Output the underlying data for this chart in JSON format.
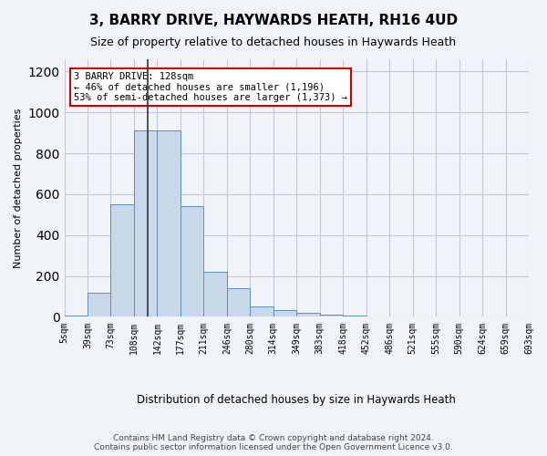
{
  "title_line1": "3, BARRY DRIVE, HAYWARDS HEATH, RH16 4UD",
  "title_line2": "Size of property relative to detached houses in Haywards Heath",
  "xlabel": "Distribution of detached houses by size in Haywards Heath",
  "ylabel": "Number of detached properties",
  "footer_line1": "Contains HM Land Registry data © Crown copyright and database right 2024.",
  "footer_line2": "Contains public sector information licensed under the Open Government Licence v3.0.",
  "bin_labels": [
    "5sqm",
    "39sqm",
    "73sqm",
    "108sqm",
    "142sqm",
    "177sqm",
    "211sqm",
    "246sqm",
    "280sqm",
    "314sqm",
    "349sqm",
    "383sqm",
    "418sqm",
    "452sqm",
    "486sqm",
    "521sqm",
    "555sqm",
    "590sqm",
    "624sqm",
    "659sqm",
    "693sqm"
  ],
  "bar_values": [
    8,
    120,
    550,
    910,
    910,
    540,
    220,
    140,
    52,
    32,
    20,
    10,
    8,
    0,
    0,
    0,
    0,
    0,
    0,
    0
  ],
  "bar_color": "#c8d8e8",
  "bar_edge_color": "#6090b8",
  "grid_color": "#c0c8d8",
  "annotation_text": "3 BARRY DRIVE: 128sqm\n← 46% of detached houses are smaller (1,196)\n53% of semi-detached houses are larger (1,373) →",
  "annotation_box_color": "#ffffff",
  "annotation_box_edge": "#cc0000",
  "ylim": [
    0,
    1260
  ],
  "bg_color": "#f0f4f8"
}
